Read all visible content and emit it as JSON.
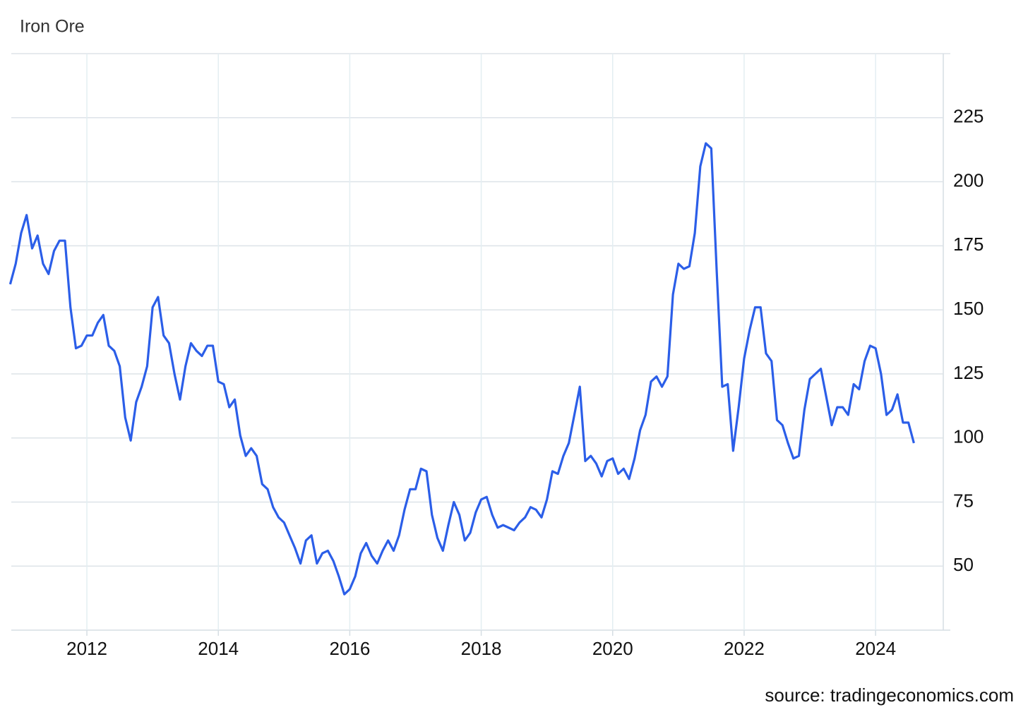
{
  "chart_data": {
    "type": "line",
    "title": "Iron Ore",
    "source": "source: tradingeconomics.com",
    "x": [
      2010.833,
      2010.917,
      2011,
      2011.083,
      2011.167,
      2011.25,
      2011.333,
      2011.417,
      2011.5,
      2011.583,
      2011.667,
      2011.75,
      2011.833,
      2011.917,
      2012,
      2012.083,
      2012.167,
      2012.25,
      2012.333,
      2012.417,
      2012.5,
      2012.583,
      2012.667,
      2012.75,
      2012.833,
      2012.917,
      2013,
      2013.083,
      2013.167,
      2013.25,
      2013.333,
      2013.417,
      2013.5,
      2013.583,
      2013.667,
      2013.75,
      2013.833,
      2013.917,
      2014,
      2014.083,
      2014.167,
      2014.25,
      2014.333,
      2014.417,
      2014.5,
      2014.583,
      2014.667,
      2014.75,
      2014.833,
      2014.917,
      2015,
      2015.083,
      2015.167,
      2015.25,
      2015.333,
      2015.417,
      2015.5,
      2015.583,
      2015.667,
      2015.75,
      2015.833,
      2015.917,
      2016,
      2016.083,
      2016.167,
      2016.25,
      2016.333,
      2016.417,
      2016.5,
      2016.583,
      2016.667,
      2016.75,
      2016.833,
      2016.917,
      2017,
      2017.083,
      2017.167,
      2017.25,
      2017.333,
      2017.417,
      2017.5,
      2017.583,
      2017.667,
      2017.75,
      2017.833,
      2017.917,
      2018,
      2018.083,
      2018.167,
      2018.25,
      2018.333,
      2018.417,
      2018.5,
      2018.583,
      2018.667,
      2018.75,
      2018.833,
      2018.917,
      2019,
      2019.083,
      2019.167,
      2019.25,
      2019.333,
      2019.417,
      2019.5,
      2019.583,
      2019.667,
      2019.75,
      2019.833,
      2019.917,
      2020,
      2020.083,
      2020.167,
      2020.25,
      2020.333,
      2020.417,
      2020.5,
      2020.583,
      2020.667,
      2020.75,
      2020.833,
      2020.917,
      2021,
      2021.083,
      2021.167,
      2021.25,
      2021.333,
      2021.417,
      2021.5,
      2021.583,
      2021.667,
      2021.75,
      2021.833,
      2021.917,
      2022,
      2022.083,
      2022.167,
      2022.25,
      2022.333,
      2022.417,
      2022.5,
      2022.583,
      2022.667,
      2022.75,
      2022.833,
      2022.917,
      2023,
      2023.083,
      2023.167,
      2023.25,
      2023.333,
      2023.417,
      2023.5,
      2023.583,
      2023.667,
      2023.75,
      2023.833,
      2023.917,
      2024,
      2024.083,
      2024.167,
      2024.25,
      2024.333,
      2024.417,
      2024.5,
      2024.583
    ],
    "values": [
      160,
      168,
      180,
      187,
      174,
      179,
      168,
      164,
      173,
      177,
      177,
      151,
      135,
      136,
      140,
      140,
      145,
      148,
      136,
      134,
      128,
      108,
      99,
      114,
      120,
      128,
      151,
      155,
      140,
      137,
      125,
      115,
      128,
      137,
      134,
      132,
      136,
      136,
      122,
      121,
      112,
      115,
      101,
      93,
      96,
      93,
      82,
      80,
      73,
      69,
      67,
      62,
      57,
      51,
      60,
      62,
      51,
      55,
      56,
      52,
      46,
      39,
      41,
      46,
      55,
      59,
      54,
      51,
      56,
      60,
      56,
      62,
      72,
      80,
      80,
      88,
      87,
      70,
      61,
      56,
      66,
      75,
      70,
      60,
      63,
      71,
      76,
      77,
      70,
      65,
      66,
      65,
      64,
      67,
      69,
      73,
      72,
      69,
      76,
      87,
      86,
      93,
      98,
      109,
      120,
      91,
      93,
      90,
      85,
      91,
      92,
      86,
      88,
      84,
      92,
      103,
      109,
      122,
      124,
      120,
      124,
      156,
      168,
      166,
      167,
      180,
      206,
      215,
      213,
      165,
      120,
      121,
      95,
      112,
      131,
      142,
      151,
      151,
      133,
      130,
      107,
      105,
      98,
      92,
      93,
      111,
      123,
      125,
      127,
      116,
      105,
      112,
      112,
      109,
      121,
      119,
      130,
      136,
      135,
      125,
      109,
      111,
      117,
      106,
      106,
      98
    ],
    "color": "#2b5ee8",
    "xlim": [
      2010.85,
      2025.03
    ],
    "xticks": [
      2012,
      2014,
      2016,
      2018,
      2020,
      2022,
      2024
    ],
    "ylim": [
      25,
      250
    ],
    "yticks": [
      50,
      75,
      100,
      125,
      150,
      175,
      200,
      225
    ],
    "grid": true
  }
}
